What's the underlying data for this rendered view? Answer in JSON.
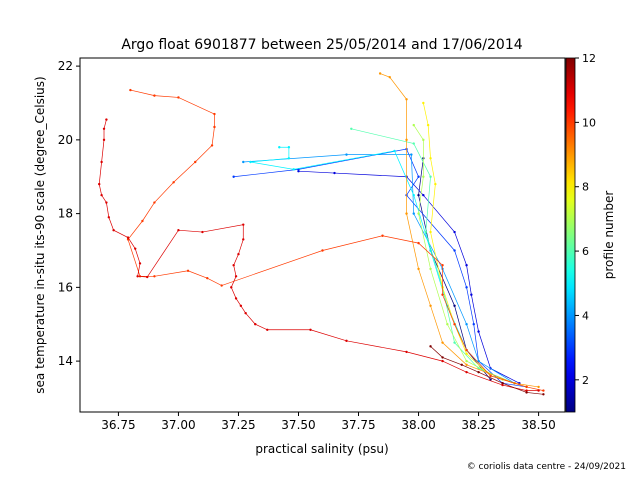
{
  "chart_data": {
    "type": "scatter",
    "title": "Argo float 6901877 between 25/05/2014 and 17/06/2014",
    "x_label": "practical salinity (psu)",
    "y_label": "sea temperature in-situ its-90 scale (degree_Celsius)",
    "colorbar_label": "profile number",
    "footer": "© coriolis data centre - 24/09/2021",
    "colormap": "jet",
    "clim": [
      1,
      12
    ],
    "cticks": [
      2,
      4,
      6,
      8,
      10,
      12
    ],
    "xlim": [
      36.59,
      38.61
    ],
    "ylim": [
      12.62,
      22.22
    ],
    "xticks": [
      36.75,
      {
        "value": 37,
        "label": "37.00"
      },
      37.25,
      {
        "value": 37.5,
        "label": "37.50"
      },
      37.75,
      {
        "value": 38,
        "label": "38.00"
      },
      38.25,
      {
        "value": 38.5,
        "label": "38.50"
      }
    ],
    "yticks": [
      14,
      16,
      18,
      20,
      22
    ],
    "profiles": [
      {
        "profile": 1,
        "salinity": [
          38.02,
          38.0,
          38.05,
          38.15,
          38.2,
          38.3
        ],
        "temperature": [
          19.5,
          18.5,
          17.0,
          15.5,
          14.3,
          13.5
        ]
      },
      {
        "profile": 2,
        "salinity": [
          37.5,
          37.65,
          37.95,
          38.02,
          38.15,
          38.2,
          38.22,
          38.25,
          38.3,
          38.42
        ],
        "temperature": [
          19.15,
          19.1,
          19.0,
          18.5,
          17.5,
          16.6,
          15.8,
          14.8,
          13.8,
          13.4
        ]
      },
      {
        "profile": 3,
        "salinity": [
          37.23,
          37.5,
          37.95,
          38.0,
          37.95,
          38.15,
          38.2,
          38.23,
          38.25,
          38.35,
          38.45
        ],
        "temperature": [
          19.0,
          19.2,
          19.75,
          19.0,
          18.5,
          17.0,
          16.0,
          15.0,
          14.0,
          13.4,
          13.3
        ]
      },
      {
        "profile": 4,
        "salinity": [
          37.27,
          37.7,
          37.97,
          37.98,
          38.1,
          38.2,
          38.25,
          38.4
        ],
        "temperature": [
          19.4,
          19.6,
          19.6,
          18.0,
          16.5,
          15.0,
          14.0,
          13.4
        ]
      },
      {
        "profile": 5,
        "salinity": [
          37.42,
          37.46,
          37.46,
          37.3,
          37.48,
          37.9,
          37.98,
          38.05,
          38.12,
          38.2,
          38.3,
          38.4
        ],
        "temperature": [
          19.8,
          19.8,
          19.5,
          19.4,
          19.2,
          19.7,
          18.5,
          17.0,
          15.5,
          14.3,
          13.6,
          13.4
        ]
      },
      {
        "profile": 6,
        "salinity": [
          37.72,
          37.98,
          38.05,
          38.03,
          38.1,
          38.15,
          38.25,
          38.4
        ],
        "temperature": [
          20.3,
          19.9,
          19.0,
          17.5,
          16.0,
          14.5,
          13.8,
          13.4
        ]
      },
      {
        "profile": 7,
        "salinity": [
          37.98,
          38.02,
          38.02,
          38.0,
          38.05,
          38.12,
          38.2,
          38.35
        ],
        "temperature": [
          20.4,
          20.0,
          19.0,
          18.0,
          16.5,
          15.0,
          14.0,
          13.5
        ]
      },
      {
        "profile": 8,
        "salinity": [
          38.02,
          38.04,
          38.05,
          38.07,
          38.05,
          38.1,
          38.15,
          38.2,
          38.3,
          38.45
        ],
        "temperature": [
          21.0,
          20.4,
          19.5,
          18.8,
          17.5,
          16.0,
          15.0,
          14.2,
          13.6,
          13.3
        ]
      },
      {
        "profile": 9,
        "salinity": [
          37.84,
          37.88,
          37.95,
          37.95,
          37.95,
          38.0,
          38.05,
          38.1,
          38.2,
          38.4,
          38.5
        ],
        "temperature": [
          21.8,
          21.7,
          21.1,
          20.0,
          18.0,
          16.5,
          15.5,
          14.5,
          13.9,
          13.4,
          13.3
        ]
      },
      {
        "profile": 10,
        "salinity": [
          36.8,
          36.9,
          37.0,
          37.15,
          37.15,
          37.14,
          37.07,
          36.98,
          36.9,
          36.85,
          36.79,
          36.84,
          36.9,
          37.04,
          37.12,
          37.18,
          37.6,
          37.85,
          38.0,
          38.1,
          38.1,
          38.15,
          38.2,
          38.3,
          38.45,
          38.52
        ],
        "temperature": [
          21.35,
          21.2,
          21.15,
          20.7,
          20.35,
          19.85,
          19.4,
          18.85,
          18.3,
          17.8,
          17.3,
          16.3,
          16.3,
          16.45,
          16.25,
          16.05,
          17.0,
          17.4,
          17.2,
          16.6,
          15.8,
          15.0,
          14.3,
          13.6,
          13.3,
          13.2
        ]
      },
      {
        "profile": 11,
        "salinity": [
          36.7,
          36.69,
          36.69,
          36.68,
          36.67,
          36.68,
          36.7,
          36.71,
          36.73,
          36.79,
          36.82,
          36.84,
          36.83,
          36.87,
          37.0,
          37.1,
          37.27,
          37.27,
          37.25,
          37.23,
          37.24,
          37.22,
          37.24,
          37.26,
          37.28,
          37.32,
          37.37,
          37.55,
          37.7,
          37.95,
          38.1,
          38.2,
          38.35,
          38.45,
          38.5
        ],
        "temperature": [
          20.55,
          20.3,
          20.0,
          19.4,
          18.8,
          18.5,
          18.3,
          17.9,
          17.55,
          17.35,
          17.05,
          16.65,
          16.3,
          16.28,
          17.55,
          17.5,
          17.7,
          17.3,
          16.9,
          16.6,
          16.3,
          16.0,
          15.7,
          15.5,
          15.3,
          15.0,
          14.85,
          14.85,
          14.55,
          14.25,
          14.0,
          13.7,
          13.35,
          13.2,
          13.2
        ]
      },
      {
        "profile": 12,
        "salinity": [
          38.05,
          38.1,
          38.18,
          38.25,
          38.35,
          38.45,
          38.52
        ],
        "temperature": [
          14.4,
          14.1,
          13.9,
          13.7,
          13.4,
          13.15,
          13.1
        ]
      }
    ]
  }
}
